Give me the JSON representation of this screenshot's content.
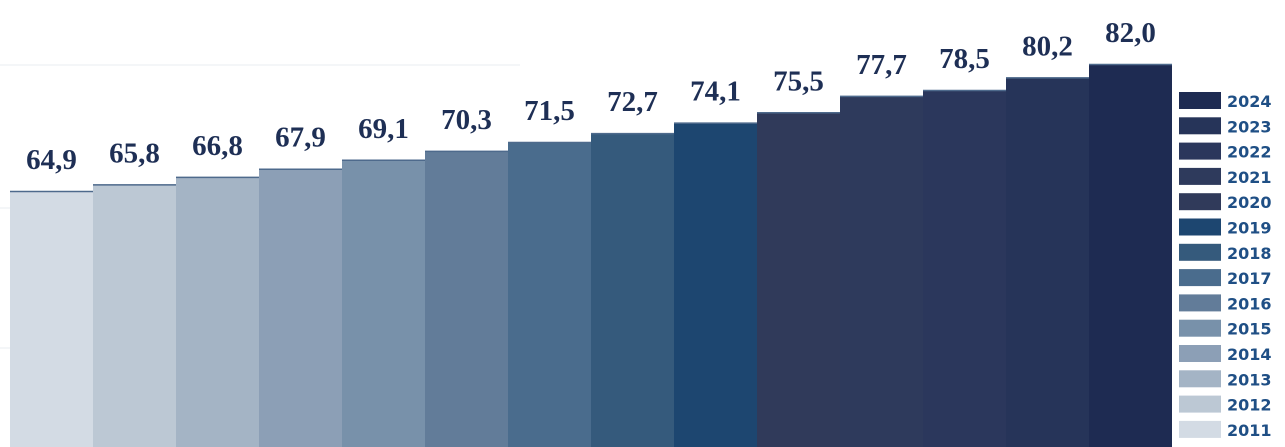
{
  "chart_data": {
    "type": "bar",
    "categories": [
      "2011",
      "2012",
      "2013",
      "2014",
      "2015",
      "2016",
      "2017",
      "2018",
      "2019",
      "2020",
      "2021",
      "2022",
      "2023",
      "2024"
    ],
    "values": [
      64.9,
      65.8,
      66.8,
      67.9,
      69.1,
      70.3,
      71.5,
      72.7,
      74.1,
      75.5,
      77.7,
      78.5,
      80.2,
      82.0
    ],
    "value_labels": [
      "64,9",
      "65,8",
      "66,8",
      "67,9",
      "69,1",
      "70,3",
      "71,5",
      "72,7",
      "74,1",
      "75,5",
      "77,7",
      "78,5",
      "80,2",
      "82,0"
    ],
    "colors": [
      "#d3dbe4",
      "#bcc8d4",
      "#a4b4c5",
      "#8c9fb6",
      "#7891aa",
      "#627c99",
      "#4a6c8d",
      "#355a7c",
      "#1d4670",
      "#303a5a",
      "#2e3a5c",
      "#2b375c",
      "#263459",
      "#1e2b52"
    ],
    "title": "",
    "xlabel": "",
    "ylabel": "",
    "legend_position": "right",
    "grid": true
  }
}
